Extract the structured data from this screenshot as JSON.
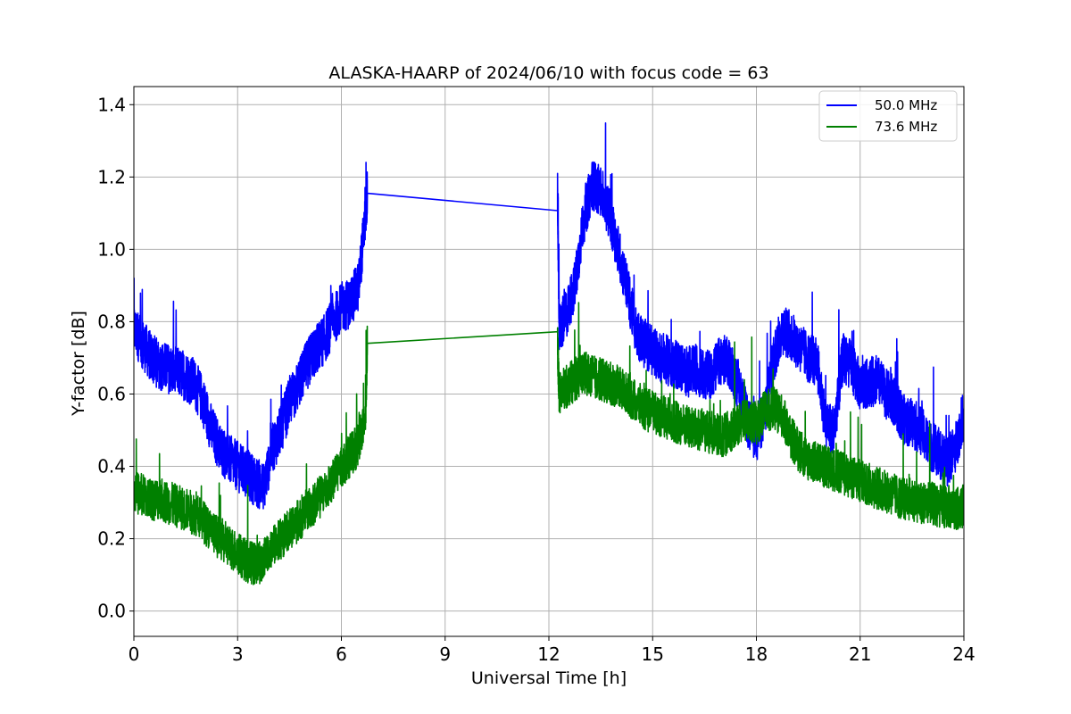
{
  "chart_data": {
    "type": "line",
    "title": "ALASKA-HAARP of 2024/06/10 with focus code = 63",
    "xlabel": "Universal Time [h]",
    "ylabel": "Y-factor [dB]",
    "xlim": [
      0,
      24
    ],
    "ylim": [
      -0.07,
      1.45
    ],
    "xticks": [
      0,
      3,
      6,
      9,
      12,
      15,
      18,
      21,
      24
    ],
    "xtick_labels": [
      "0",
      "3",
      "6",
      "9",
      "12",
      "15",
      "18",
      "21",
      "24"
    ],
    "yticks": [
      0.0,
      0.2,
      0.4,
      0.6,
      0.8,
      1.0,
      1.2,
      1.4
    ],
    "ytick_labels": [
      "0.0",
      "0.2",
      "0.4",
      "0.6",
      "0.8",
      "1.0",
      "1.2",
      "1.4"
    ],
    "grid": true,
    "legend_position": "top-right",
    "series": [
      {
        "name": "50.0 MHz",
        "color": "#0000ff",
        "x": [
          0.0,
          0.25,
          0.5,
          0.75,
          1.0,
          1.25,
          1.5,
          1.75,
          2.0,
          2.25,
          2.5,
          2.75,
          3.0,
          3.25,
          3.5,
          3.75,
          4.0,
          4.25,
          4.5,
          4.75,
          5.0,
          5.25,
          5.5,
          5.75,
          6.0,
          6.25,
          6.5,
          6.7,
          6.75,
          12.25,
          12.3,
          12.5,
          12.75,
          13.0,
          13.25,
          13.5,
          13.75,
          14.0,
          14.25,
          14.5,
          14.75,
          15.0,
          15.25,
          15.5,
          15.75,
          16.0,
          16.25,
          16.5,
          16.75,
          17.0,
          17.25,
          17.5,
          17.75,
          18.0,
          18.25,
          18.5,
          18.75,
          19.0,
          19.25,
          19.5,
          19.75,
          20.0,
          20.25,
          20.5,
          20.75,
          21.0,
          21.25,
          21.5,
          21.75,
          22.0,
          22.25,
          22.5,
          22.75,
          23.0,
          23.25,
          23.5,
          23.75,
          24.0
        ],
        "y": [
          0.78,
          0.74,
          0.7,
          0.68,
          0.67,
          0.66,
          0.65,
          0.63,
          0.58,
          0.5,
          0.45,
          0.42,
          0.4,
          0.38,
          0.36,
          0.34,
          0.45,
          0.5,
          0.58,
          0.62,
          0.68,
          0.72,
          0.75,
          0.8,
          0.84,
          0.85,
          0.9,
          1.1,
          1.155,
          1.15,
          0.78,
          0.82,
          0.9,
          1.08,
          1.18,
          1.16,
          1.1,
          1.0,
          0.9,
          0.78,
          0.74,
          0.72,
          0.7,
          0.69,
          0.68,
          0.66,
          0.67,
          0.65,
          0.66,
          0.7,
          0.68,
          0.62,
          0.52,
          0.48,
          0.55,
          0.7,
          0.78,
          0.76,
          0.73,
          0.7,
          0.69,
          0.52,
          0.5,
          0.7,
          0.68,
          0.62,
          0.63,
          0.64,
          0.6,
          0.58,
          0.53,
          0.52,
          0.5,
          0.46,
          0.44,
          0.41,
          0.45,
          0.55
        ]
      },
      {
        "name": "73.6 MHz",
        "color": "#008000",
        "x": [
          0.0,
          0.25,
          0.5,
          0.75,
          1.0,
          1.25,
          1.5,
          1.75,
          2.0,
          2.25,
          2.5,
          2.75,
          3.0,
          3.25,
          3.5,
          3.75,
          4.0,
          4.25,
          4.5,
          4.75,
          5.0,
          5.25,
          5.5,
          5.75,
          6.0,
          6.25,
          6.5,
          6.7,
          6.75,
          12.25,
          12.3,
          12.5,
          12.75,
          13.0,
          13.25,
          13.5,
          13.75,
          14.0,
          14.25,
          14.5,
          14.75,
          15.0,
          15.25,
          15.5,
          15.75,
          16.0,
          16.25,
          16.5,
          16.75,
          17.0,
          17.25,
          17.5,
          17.75,
          18.0,
          18.25,
          18.5,
          18.75,
          19.0,
          19.25,
          19.5,
          19.75,
          20.0,
          20.25,
          20.5,
          20.75,
          21.0,
          21.25,
          21.5,
          21.75,
          22.0,
          22.25,
          22.5,
          22.75,
          23.0,
          23.25,
          23.5,
          23.75,
          24.0
        ],
        "y": [
          0.33,
          0.32,
          0.31,
          0.31,
          0.3,
          0.29,
          0.28,
          0.27,
          0.25,
          0.22,
          0.2,
          0.18,
          0.16,
          0.14,
          0.13,
          0.14,
          0.18,
          0.2,
          0.23,
          0.25,
          0.28,
          0.3,
          0.33,
          0.36,
          0.4,
          0.43,
          0.46,
          0.55,
          0.74,
          0.735,
          0.6,
          0.62,
          0.64,
          0.66,
          0.65,
          0.64,
          0.63,
          0.62,
          0.6,
          0.58,
          0.56,
          0.55,
          0.54,
          0.53,
          0.52,
          0.51,
          0.5,
          0.5,
          0.49,
          0.48,
          0.5,
          0.52,
          0.53,
          0.52,
          0.55,
          0.56,
          0.54,
          0.48,
          0.44,
          0.42,
          0.41,
          0.4,
          0.39,
          0.38,
          0.37,
          0.36,
          0.35,
          0.34,
          0.33,
          0.32,
          0.31,
          0.31,
          0.3,
          0.3,
          0.29,
          0.29,
          0.28,
          0.29
        ]
      }
    ]
  }
}
